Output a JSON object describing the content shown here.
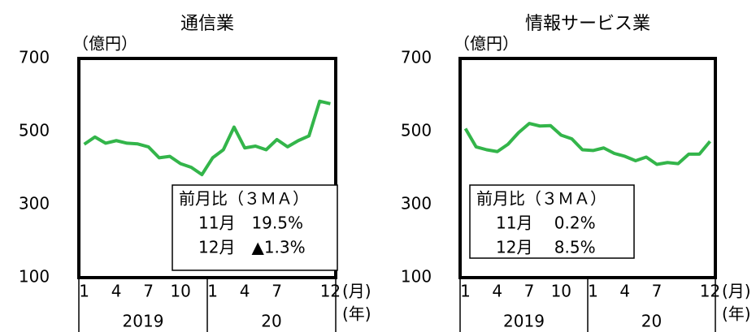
{
  "chart_data": [
    {
      "type": "line",
      "title": "通信業",
      "y_label": "（億円）",
      "x_unit": "(月)",
      "year_unit": "(年)",
      "years": [
        "2019",
        "20"
      ],
      "categories": [
        "1",
        null,
        null,
        "4",
        null,
        null,
        "7",
        null,
        null,
        "10",
        null,
        null,
        "1",
        null,
        null,
        "4",
        null,
        null,
        "7",
        null,
        null,
        null,
        null,
        "12"
      ],
      "values": [
        465,
        485,
        468,
        475,
        468,
        466,
        458,
        428,
        432,
        412,
        402,
        382,
        428,
        450,
        512,
        455,
        460,
        450,
        478,
        458,
        475,
        488,
        583,
        576
      ],
      "color": "#33b54a",
      "ylim": [
        100,
        700
      ],
      "yticks": [
        100,
        300,
        500,
        700
      ],
      "annotation": [
        "前月比（３ＭＡ）",
        "11月　19.5%",
        "12月　▲1.3%"
      ]
    },
    {
      "type": "line",
      "title": "情報サービス業",
      "y_label": "（億円）",
      "x_unit": "(月)",
      "year_unit": "(年)",
      "years": [
        "2019",
        "20"
      ],
      "categories": [
        "1",
        null,
        null,
        "4",
        null,
        null,
        "7",
        null,
        null,
        "10",
        null,
        null,
        "1",
        null,
        null,
        "4",
        null,
        null,
        "7",
        null,
        null,
        null,
        null,
        "12"
      ],
      "values": [
        508,
        458,
        450,
        445,
        465,
        497,
        522,
        515,
        516,
        490,
        480,
        450,
        448,
        455,
        440,
        432,
        420,
        430,
        410,
        415,
        412,
        438,
        438,
        473
      ],
      "color": "#33b54a",
      "ylim": [
        100,
        700
      ],
      "yticks": [
        100,
        300,
        500,
        700
      ],
      "annotation": [
        "前月比（３ＭＡ）",
        "11月　 0.2%",
        "12月　 8.5%"
      ]
    }
  ]
}
